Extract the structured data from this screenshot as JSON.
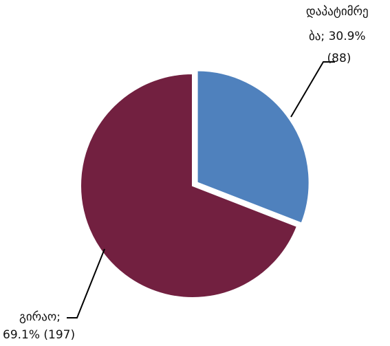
{
  "chart_data": {
    "type": "pie",
    "title": "",
    "slices": [
      {
        "label": "დაპატიმრება",
        "label_lines": [
          "დაპატიმრე",
          "ბა; 30.9%",
          "(88)"
        ],
        "percent": 30.9,
        "count": 88,
        "color": "#4f81bd",
        "exploded": true
      },
      {
        "label": "გირაო",
        "label_lines": [
          "გირაო;",
          "69.1% (197)"
        ],
        "percent": 69.1,
        "count": 197,
        "color": "#722040",
        "exploded": false
      }
    ],
    "start_angle_deg": 0,
    "direction": "clockwise",
    "legend": "none"
  }
}
